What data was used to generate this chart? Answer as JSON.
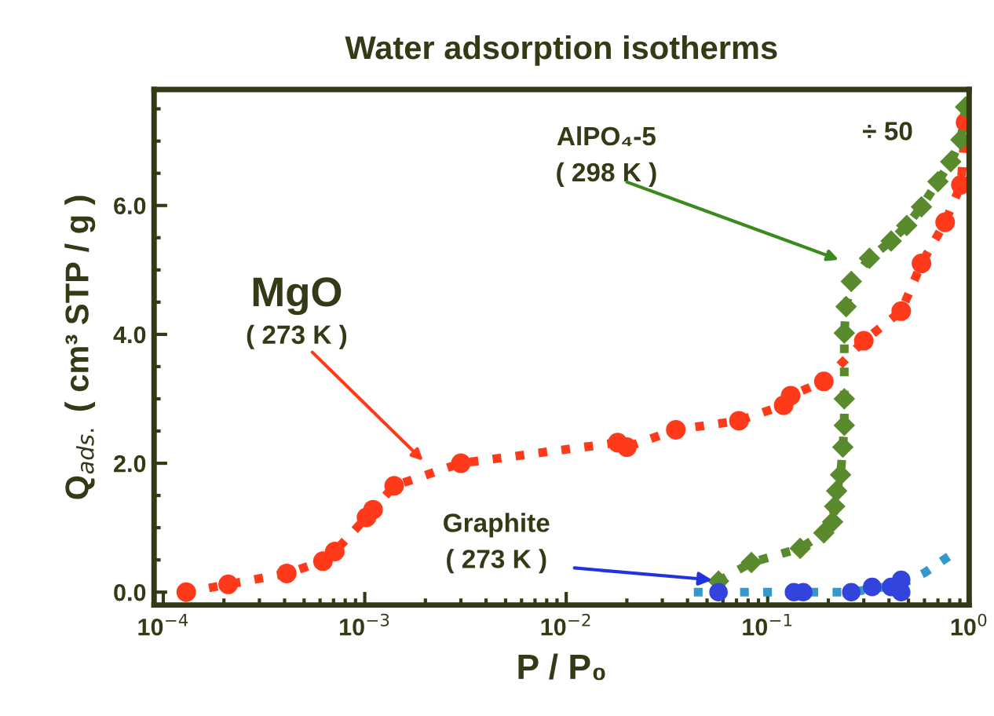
{
  "chart_data": {
    "type": "line",
    "title": "Water adsorption isotherms",
    "xlabel": "P / P₀",
    "ylabel": "Q$_{ads.}$ ( cm³ STP / g )",
    "log": "x",
    "xlim": [
      9e-05,
      1
    ],
    "ylim": [
      -0.2,
      7.8
    ],
    "xticks": [
      {
        "value": 0.0001,
        "label": "10$^{−4}$"
      },
      {
        "value": 0.001,
        "label": "10$^{−3}$"
      },
      {
        "value": 0.01,
        "label": "10$^{−2}$"
      },
      {
        "value": 0.1,
        "label": "10$^{−1}$"
      },
      {
        "value": 1,
        "label": "10$^{0}$"
      }
    ],
    "yticks": [
      {
        "value": 0,
        "label": "0.0"
      },
      {
        "value": 2,
        "label": "2.0"
      },
      {
        "value": 4,
        "label": "4.0"
      },
      {
        "value": 6,
        "label": "6.0"
      }
    ],
    "grid": false,
    "line_style": "dotted",
    "series": [
      {
        "marker": "circle",
        "color": "#ff3a1a",
        "x": [
          0.00013,
          0.00021,
          0.00041,
          0.00062,
          0.00071,
          0.00102,
          0.0011,
          0.0014,
          0.003,
          0.018,
          0.02,
          0.035,
          0.072,
          0.12,
          0.13,
          0.19,
          0.3,
          0.46,
          0.58,
          0.76,
          0.91,
          0.96
        ],
        "values": [
          0.0,
          0.12,
          0.29,
          0.48,
          0.63,
          1.16,
          1.28,
          1.65,
          2.0,
          2.32,
          2.25,
          2.52,
          2.66,
          2.9,
          3.05,
          3.27,
          3.9,
          4.36,
          5.1,
          5.74,
          6.32,
          7.29
        ]
      },
      {
        "marker": "diamond",
        "color": "#5a8a2e",
        "x": [
          0.057,
          0.083,
          0.145,
          0.19,
          0.21,
          0.215,
          0.22,
          0.23,
          0.236,
          0.24,
          0.24,
          0.24,
          0.245,
          0.26,
          0.32,
          0.41,
          0.49,
          0.58,
          0.7,
          0.81,
          0.91,
          0.96
        ],
        "values": [
          0.17,
          0.46,
          0.68,
          0.92,
          1.09,
          1.33,
          1.57,
          1.82,
          2.25,
          2.59,
          3.0,
          4.02,
          4.43,
          4.82,
          5.18,
          5.45,
          5.69,
          5.98,
          6.37,
          6.68,
          7.02,
          7.53
        ]
      },
      {
        "marker": "none",
        "color": "#3399cc",
        "x": [
          0.043,
          0.1,
          0.26,
          0.46,
          0.6,
          0.86
        ],
        "values": [
          0.0,
          0.0,
          0.0,
          0.12,
          0.3,
          0.63
        ]
      },
      {
        "type": "scatter",
        "marker": "circle",
        "color": "#3344dd",
        "x": [
          0.057,
          0.135,
          0.15,
          0.26,
          0.33,
          0.41,
          0.46,
          0.46
        ],
        "values": [
          0.0,
          0.0,
          0.0,
          0.0,
          0.08,
          0.08,
          0.19,
          0.0
        ]
      }
    ],
    "annotations": [
      "MgO",
      "( 273 K )",
      "AlPO₄-5",
      "( 298 K )",
      "Graphite",
      {
        "text": "( 273 K )",
        "x": 0.053,
        "y": 0.19
      },
      "÷ 50"
    ]
  }
}
